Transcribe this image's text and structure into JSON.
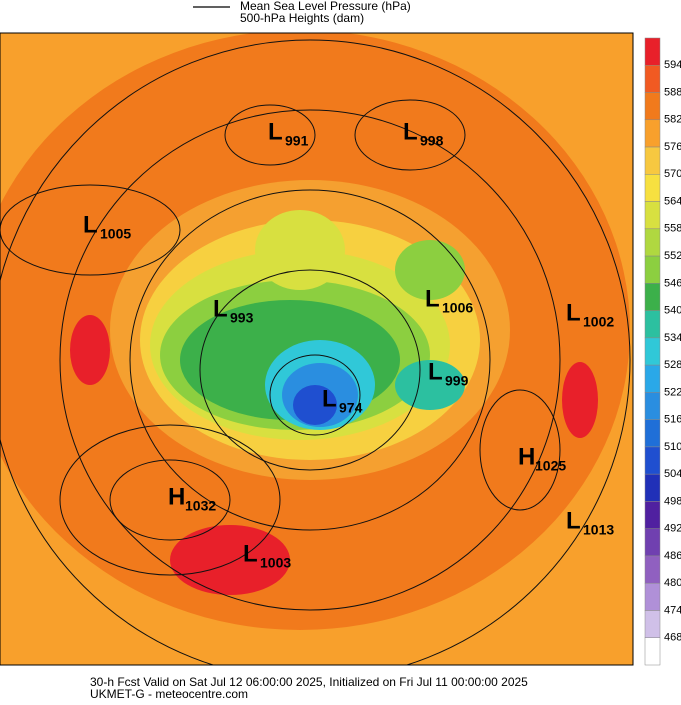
{
  "legend": {
    "line1": "Mean Sea Level Pressure (hPa)",
    "line2": "500-hPa Heights (dam)"
  },
  "colorbar": {
    "labels": [
      594,
      588,
      582,
      576,
      570,
      564,
      558,
      552,
      546,
      540,
      534,
      528,
      522,
      516,
      510,
      504,
      498,
      492,
      486,
      480,
      474,
      468
    ]
  },
  "centers": [
    {
      "letter": "L",
      "value": 991
    },
    {
      "letter": "L",
      "value": 998
    },
    {
      "letter": "L",
      "value": 1005
    },
    {
      "letter": "L",
      "value": 993
    },
    {
      "letter": "L",
      "value": 1006
    },
    {
      "letter": "L",
      "value": 1002
    },
    {
      "letter": "L",
      "value": 999
    },
    {
      "letter": "L",
      "value": 974
    },
    {
      "letter": "H",
      "value": 1025
    },
    {
      "letter": "H",
      "value": 1032
    },
    {
      "letter": "L",
      "value": 1003
    },
    {
      "letter": "L",
      "value": 1013
    }
  ],
  "footer": {
    "line1": "30-h Fcst Valid on Sat Jul 12 06:00:00 2025, Initialized on Fri Jul 11 00:00:00 2025",
    "line2": "UKMET-G  - meteocentre.com"
  }
}
